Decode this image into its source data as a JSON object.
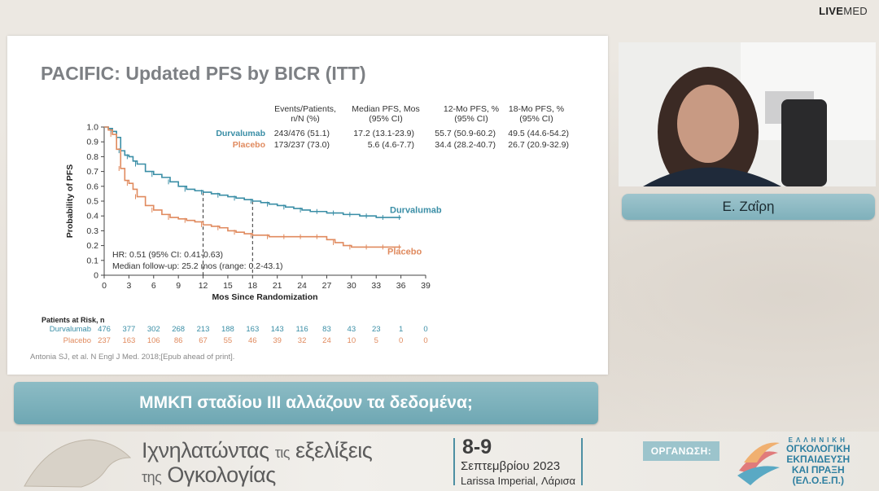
{
  "brand": {
    "live": "LIVE",
    "med": "MED"
  },
  "slide": {
    "title": "PACIFIC: Updated PFS by BICR (ITT)",
    "table": {
      "headers": [
        [
          "Events/Patients,",
          "n/N (%)"
        ],
        [
          "Median PFS, Mos",
          "(95% CI)"
        ],
        [
          "12-Mo PFS, %",
          "(95% CI)"
        ],
        [
          "18-Mo PFS, %",
          "(95% CI)"
        ]
      ],
      "rows": [
        {
          "arm": "Durvalumab",
          "events": "243/476 (51.1)",
          "median": "17.2 (13.1-23.9)",
          "pfs12": "55.7 (50.9-60.2)",
          "pfs18": "49.5 (44.6-54.2)"
        },
        {
          "arm": "Placebo",
          "events": "173/237 (73.0)",
          "median": "5.6 (4.6-7.7)",
          "pfs12": "34.4 (28.2-40.7)",
          "pfs18": "26.7 (20.9-32.9)"
        }
      ]
    },
    "hr_text": "HR: 0.51 (95% CI: 0.41-0.63)",
    "followup_text": "Median follow-up: 25.2 mos (range: 0.2-43.1)",
    "risk": {
      "title": "Patients at Risk, n",
      "rows": [
        {
          "arm": "Durvalumab",
          "values": [
            "476",
            "377",
            "302",
            "268",
            "213",
            "188",
            "163",
            "143",
            "116",
            "83",
            "43",
            "23",
            "1",
            "0"
          ]
        },
        {
          "arm": "Placebo",
          "values": [
            "237",
            "163",
            "106",
            "86",
            "67",
            "55",
            "46",
            "39",
            "32",
            "24",
            "10",
            "5",
            "0",
            "0"
          ]
        }
      ]
    },
    "citation": "Antonia SJ, et al. N Engl J Med. 2018;[Epub ahead of print]."
  },
  "chart_data": {
    "type": "line",
    "title": "",
    "xlabel": "Mos Since Randomization",
    "ylabel": "Probability of PFS",
    "xlim": [
      0,
      39
    ],
    "ylim": [
      0,
      1.0
    ],
    "xticks": [
      "0",
      "3",
      "6",
      "9",
      "12",
      "15",
      "18",
      "21",
      "24",
      "27",
      "30",
      "33",
      "36",
      "39"
    ],
    "yticks": [
      "0",
      "0.1",
      "0.2",
      "0.3",
      "0.4",
      "0.5",
      "0.6",
      "0.7",
      "0.8",
      "0.9",
      "1.0"
    ],
    "series": [
      {
        "name": "Durvalumab",
        "color": "#3a8ea6",
        "x": [
          0,
          0.5,
          1,
          1.5,
          2,
          2.5,
          3,
          3.5,
          4,
          5,
          6,
          7,
          8,
          9,
          10,
          11,
          12,
          13,
          14,
          15,
          16,
          17,
          18,
          19,
          20,
          21,
          22,
          23,
          24,
          25,
          26,
          27,
          28,
          29,
          30,
          31,
          32,
          33,
          34,
          35,
          36
        ],
        "y": [
          1.0,
          0.99,
          0.97,
          0.93,
          0.84,
          0.81,
          0.8,
          0.77,
          0.75,
          0.7,
          0.68,
          0.66,
          0.63,
          0.6,
          0.58,
          0.57,
          0.56,
          0.55,
          0.54,
          0.53,
          0.52,
          0.51,
          0.5,
          0.49,
          0.48,
          0.47,
          0.46,
          0.45,
          0.44,
          0.43,
          0.43,
          0.42,
          0.42,
          0.41,
          0.41,
          0.4,
          0.4,
          0.39,
          0.39,
          0.39,
          0.39
        ]
      },
      {
        "name": "Placebo",
        "color": "#e08a5e",
        "x": [
          0,
          0.5,
          1,
          1.5,
          2,
          2.5,
          3,
          3.5,
          4,
          5,
          6,
          7,
          8,
          9,
          10,
          11,
          12,
          13,
          14,
          15,
          16,
          17,
          18,
          19,
          20,
          21,
          22,
          23,
          24,
          25,
          26,
          27,
          28,
          29,
          30,
          31,
          32,
          33,
          34,
          35,
          36
        ],
        "y": [
          1.0,
          0.98,
          0.95,
          0.85,
          0.72,
          0.64,
          0.62,
          0.58,
          0.53,
          0.47,
          0.44,
          0.41,
          0.39,
          0.38,
          0.37,
          0.36,
          0.34,
          0.33,
          0.32,
          0.3,
          0.29,
          0.28,
          0.27,
          0.27,
          0.26,
          0.26,
          0.26,
          0.26,
          0.26,
          0.26,
          0.26,
          0.24,
          0.22,
          0.2,
          0.19,
          0.19,
          0.19,
          0.19,
          0.19,
          0.19,
          0.19
        ]
      }
    ],
    "reference_x": [
      12,
      18
    ],
    "annotations": [
      {
        "text": "Durvalumab",
        "series": "Durvalumab"
      },
      {
        "text": "Placebo",
        "series": "Placebo"
      }
    ]
  },
  "speaker": {
    "name": "Ε. Ζαΐρη"
  },
  "caption": {
    "text": "ΜΜΚΠ σταδίου ΙΙΙ αλλάζουν τα δεδομένα;"
  },
  "footer": {
    "line1_a": "Ιχνηλατώντας",
    "line1_small": "τις",
    "line1_b": "εξελίξεις",
    "line2_small": "της",
    "line2_b": "Ογκολογίας",
    "date": "8-9",
    "month": "Σεπτεμβρίου 2023",
    "venue": "Larissa Imperial, Λάρισα",
    "org_label": "ΟΡΓΑΝΩΣΗ:",
    "org_lines": [
      "ΕΛΛΗΝΙΚΗ",
      "ΟΓΚΟΛΟΓΙΚΗ",
      "ΕΚΠΑΙΔΕΥΣΗ",
      "ΚΑΙ ΠΡΑΞΗ",
      "(ΕΛ.Ο.Ε.Π.)"
    ]
  }
}
